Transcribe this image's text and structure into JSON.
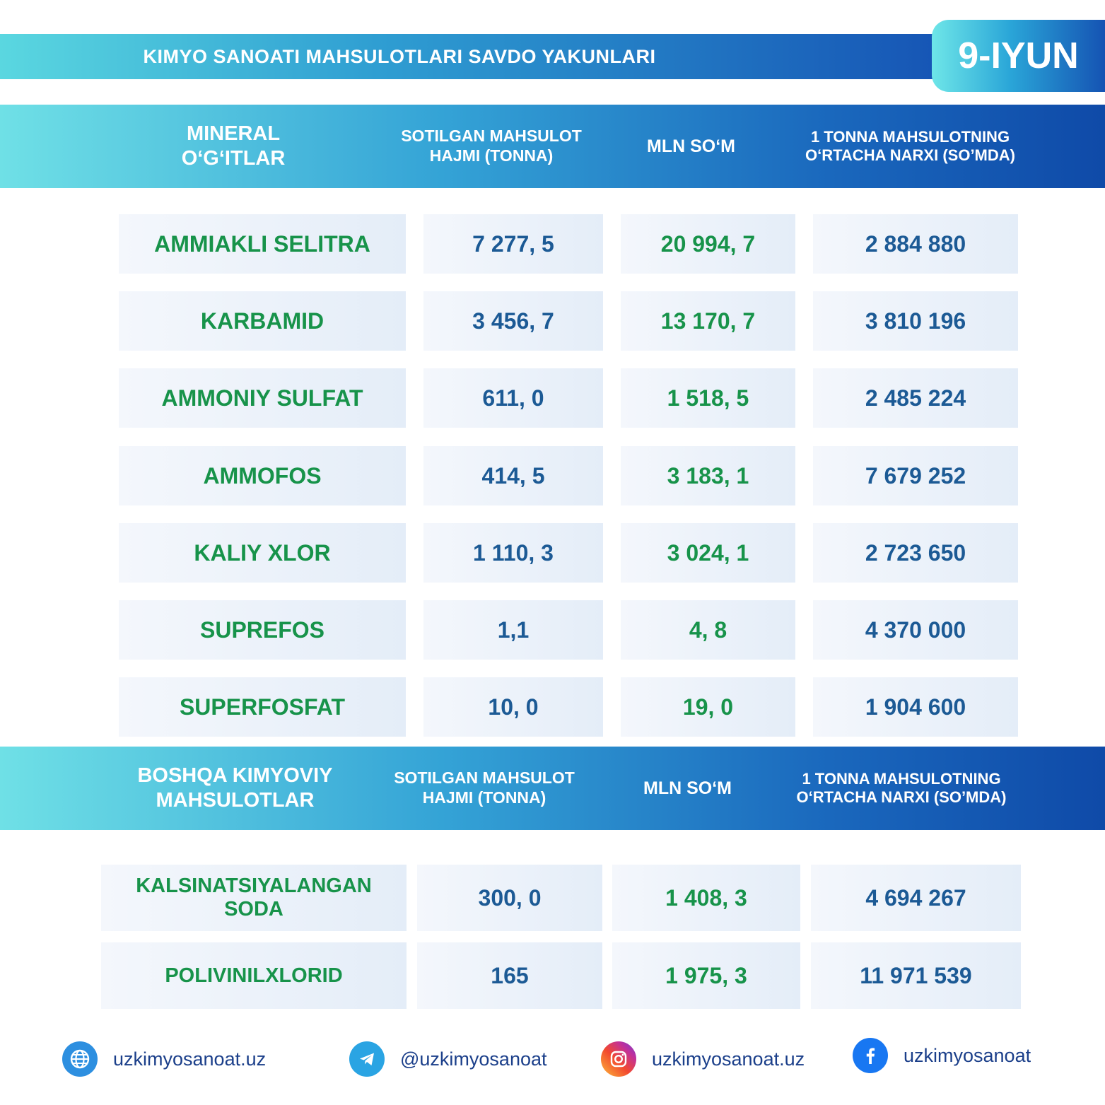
{
  "banner": {
    "title": "KIMYO SANOATI MAHSULOTLARI SAVDO YAKUNLARI",
    "date": "9-IYUN"
  },
  "section1": {
    "headers": {
      "category": "MINERAL O‘G‘ITLAR",
      "volume": "SOTILGAN MAHSULOT HAJMI (TONNA)",
      "amount": "MLN SO‘M",
      "price": "1 TONNA MAHSULOTNING O‘RTACHA NARXI (SO’MDA)"
    },
    "rows": [
      {
        "name": "AMMIAKLI SELITRA",
        "volume": "7 277, 5",
        "amount": "20 994, 7",
        "price": "2 884 880"
      },
      {
        "name": "KARBAMID",
        "volume": "3 456, 7",
        "amount": "13 170, 7",
        "price": "3 810 196"
      },
      {
        "name": "AMMONIY SULFAT",
        "volume": "611, 0",
        "amount": "1 518, 5",
        "price": "2 485 224"
      },
      {
        "name": "AMMOFOS",
        "volume": "414, 5",
        "amount": "3 183, 1",
        "price": "7 679 252"
      },
      {
        "name": "KALIY XLOR",
        "volume": "1 110, 3",
        "amount": "3 024, 1",
        "price": "2 723 650"
      },
      {
        "name": "SUPREFOS",
        "volume": "1,1",
        "amount": "4, 8",
        "price": "4 370 000"
      },
      {
        "name": "SUPERFOSFAT",
        "volume": "10, 0",
        "amount": "19, 0",
        "price": "1 904 600"
      }
    ]
  },
  "section2": {
    "headers": {
      "category": "BOSHQA KIMYOVIY MAHSULOTLAR",
      "volume": "SOTILGAN MAHSULOT HAJMI (TONNA)",
      "amount": "MLN SO‘M",
      "price": "1 TONNA MAHSULOTNING O‘RTACHA NARXI (SO’MDA)"
    },
    "rows": [
      {
        "name": "KALSINATSIYALANGAN SODA",
        "volume": "300, 0",
        "amount": "1 408, 3",
        "price": "4 694 267"
      },
      {
        "name": "POLIVINILXLORID",
        "volume": "165",
        "amount": "1 975, 3",
        "price": "11 971 539"
      }
    ]
  },
  "footer": {
    "website": "uzkimyosanoat.uz",
    "telegram": "@uzkimyosanoat",
    "instagram": "uzkimyosanoat.uz",
    "facebook": "uzkimyosanoat"
  },
  "colors": {
    "green_text": "#17934a",
    "blue_text": "#1c5a95",
    "header_start": "#6fe0e6",
    "header_end": "#0f4aa8"
  }
}
